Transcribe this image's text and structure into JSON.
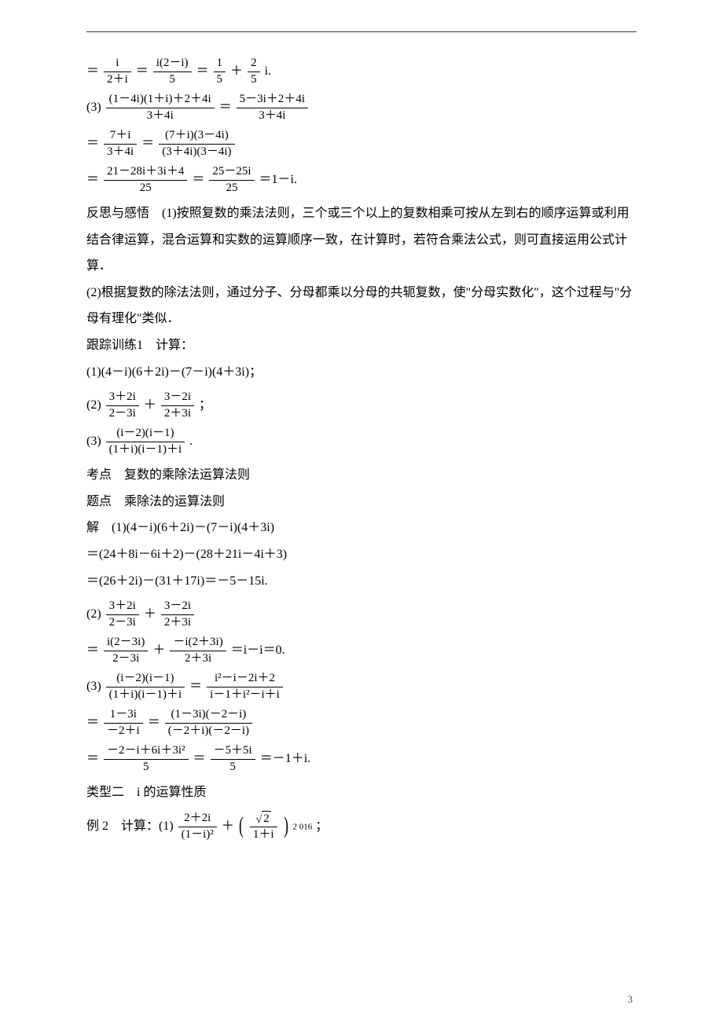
{
  "page_number": "3",
  "block1": {
    "l1_pre": "＝",
    "l1_f1_num": "i",
    "l1_f1_den": "2＋i",
    "l1_mid1": "＝",
    "l1_f2_num": "i(2－i)",
    "l1_f2_den": "5",
    "l1_mid2": "＝",
    "l1_f3_num": "1",
    "l1_f3_den": "5",
    "l1_mid3": "＋",
    "l1_f4_num": "2",
    "l1_f4_den": "5",
    "l1_post": "i.",
    "l2_pre": "(3)",
    "l2_f1_num": "(1－4i)(1＋i)＋2＋4i",
    "l2_f1_den": "3＋4i",
    "l2_mid": "＝",
    "l2_f2_num": "5－3i＋2＋4i",
    "l2_f2_den": "3＋4i",
    "l3_pre": "＝",
    "l3_f1_num": "7＋i",
    "l3_f1_den": "3＋4i",
    "l3_mid": "＝",
    "l3_f2_num": "(7＋i)(3－4i)",
    "l3_f2_den": "(3＋4i)(3－4i)",
    "l4_pre": "＝",
    "l4_f1_num": "21－28i＋3i＋4",
    "l4_f1_den": "25",
    "l4_mid": "＝",
    "l4_f2_num": "25－25i",
    "l4_f2_den": "25",
    "l4_post": "＝1－i."
  },
  "fansi": {
    "p1": "反思与感悟　(1)按照复数的乘法法则，三个或三个以上的复数相乘可按从左到右的顺序运算或利用结合律运算，混合运算和实数的运算顺序一致，在计算时，若符合乘法公式，则可直接运用公式计算．",
    "p2": "(2)根据复数的除法法则，通过分子、分母都乘以分母的共轭复数，使\"分母实数化\"，这个过程与\"分母有理化\"类似．"
  },
  "genzong": {
    "title": "跟踪训练1　计算：",
    "item1": "(1)(4－i)(6＋2i)－(7－i)(4＋3i)；",
    "item2_pre": "(2)",
    "item2_f1_num": "3＋2i",
    "item2_f1_den": "2－3i",
    "item2_mid": "＋",
    "item2_f2_num": "3－2i",
    "item2_f2_den": "2＋3i",
    "item2_post": "；",
    "item3_pre": "(3)",
    "item3_f_num": "(i－2)(i－1)",
    "item3_f_den": "(1＋i)(i－1)＋i",
    "item3_post": "."
  },
  "kaodian": "考点　复数的乘除法运算法则",
  "tidian": "题点　乘除法的运算法则",
  "jie": {
    "l1": "解　(1)(4－i)(6＋2i)－(7－i)(4＋3i)",
    "l2": "＝(24＋8i－6i＋2)－(28＋21i－4i＋3)",
    "l3": "＝(26＋2i)－(31＋17i)＝－5－15i.",
    "l4_pre": "(2)",
    "l4_f1_num": "3＋2i",
    "l4_f1_den": "2－3i",
    "l4_mid": "＋",
    "l4_f2_num": "3－2i",
    "l4_f2_den": "2＋3i",
    "l5_pre": "＝",
    "l5_f1_num": "i(2－3i)",
    "l5_f1_den": "2－3i",
    "l5_mid": "＋",
    "l5_f2_num": "－i(2＋3i)",
    "l5_f2_den": "2＋3i",
    "l5_post": "＝i－i＝0.",
    "l6_pre": "(3)",
    "l6_f1_num": "(i－2)(i－1)",
    "l6_f1_den": "(1＋i)(i－1)＋i",
    "l6_mid": "＝",
    "l6_f2_num": "i²－i－2i＋2",
    "l6_f2_den": "i－1＋i²－i＋i",
    "l7_pre": "＝",
    "l7_f1_num": "1－3i",
    "l7_f1_den": "－2＋i",
    "l7_mid": "＝",
    "l7_f2_num": "(1－3i)(－2－i)",
    "l7_f2_den": "(－2＋i)(－2－i)",
    "l8_pre": "＝",
    "l8_f1_num": "－2－i＋6i＋3i²",
    "l8_f1_den": "5",
    "l8_mid": "＝",
    "l8_f2_num": "－5＋5i",
    "l8_f2_den": "5",
    "l8_post": "＝－1＋i."
  },
  "type2": "类型二　i 的运算性质",
  "ex2": {
    "pre": "例 2　计算：(1)",
    "f1_num": "2＋2i",
    "f1_den": "(1－i)²",
    "mid": "＋",
    "f2_num_rad": "2",
    "f2_den": "1＋i",
    "exp": "2 016",
    "post": "；"
  }
}
